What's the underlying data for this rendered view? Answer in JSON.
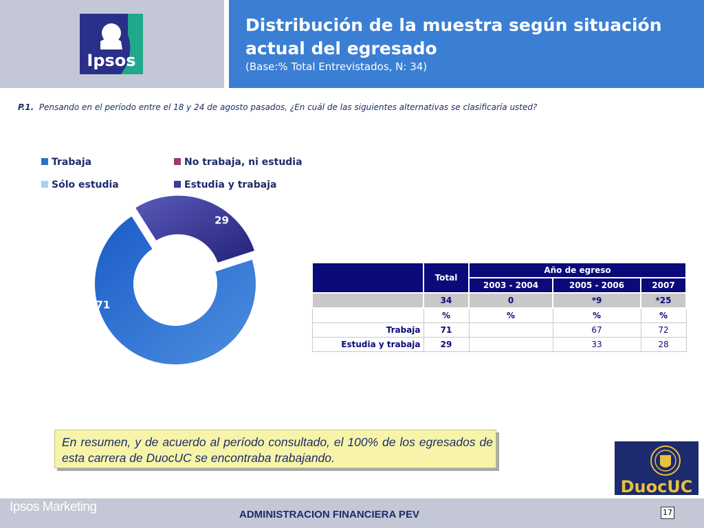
{
  "header": {
    "logo_text": "Ipsos",
    "title_line1": "Distribución de la muestra según situación",
    "title_line2": "actual del egresado",
    "subtitle": "(Base:% Total Entrevistados, N: 34)"
  },
  "question": {
    "code": "P.1.",
    "text": "Pensando en el período entre el 18 y 24 de agosto pasados, ¿En cuál de las siguientes alternativas se clasificaría usted?"
  },
  "chart_data": {
    "type": "pie",
    "variant": "donut",
    "legend_placement": "top",
    "legend": [
      {
        "label": "Trabaja",
        "color": "#2f6fd0"
      },
      {
        "label": "No trabaja, ni estudia",
        "color": "#9b3a6b"
      },
      {
        "label": "Sólo estudia",
        "color": "#a8d0f0"
      },
      {
        "label": "Estudia y trabaja",
        "color": "#3a3aa0"
      }
    ],
    "slices": [
      {
        "label": "Trabaja",
        "value": 71,
        "color": "#2f6fd0"
      },
      {
        "label": "Estudia y trabaja",
        "value": 29,
        "color": "#3d3d9e"
      }
    ]
  },
  "table": {
    "total_header": "Total",
    "group_header": "Año de egreso",
    "columns": [
      "2003 - 2004",
      "2005 - 2006",
      "2007"
    ],
    "n_row": {
      "total": "34",
      "values": [
        "0",
        "*9",
        "*25"
      ]
    },
    "pct_row": {
      "total": "%",
      "values": [
        "%",
        "%",
        "%"
      ]
    },
    "rows": [
      {
        "label": "Trabaja",
        "total": "71",
        "values": [
          "",
          "67",
          "72"
        ]
      },
      {
        "label": "Estudia y trabaja",
        "total": "29",
        "values": [
          "",
          "33",
          "28"
        ]
      }
    ]
  },
  "summary": {
    "text": "En resumen, y de acuerdo al período consultado, el 100% de los egresados de esta carrera de DuocUC se encontraba trabajando."
  },
  "duoc_logo": {
    "text": "DuocUC"
  },
  "footer": {
    "brand": "Ipsos Marketing",
    "title": "ADMINISTRACION FINANCIERA PEV",
    "page": "17"
  }
}
